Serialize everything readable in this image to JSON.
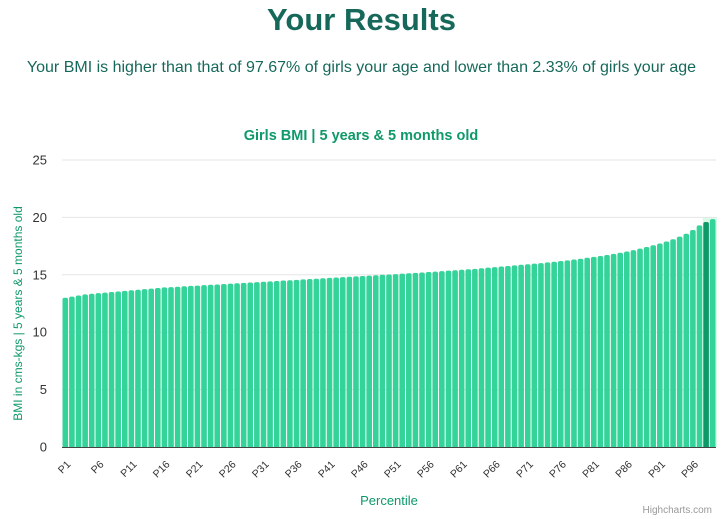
{
  "page": {
    "heading": "Your Results",
    "summary": "Your BMI is higher than that of 97.67% of girls your age and lower than 2.33% of girls your age",
    "credits": "Highcharts.com"
  },
  "colors": {
    "bar": "#34d399",
    "highlight": "#0e9968",
    "highlight_band": "#d9fbe8",
    "title_text": "#0e9968",
    "heading_text": "#16695a",
    "axis_label_text": "#333333",
    "grid": "#e6e6e6"
  },
  "chart_data": {
    "type": "bar",
    "title": "Girls BMI | 5 years & 5 months old",
    "xlabel": "Percentile",
    "ylabel": "BMI in cms-kgs | 5 years & 5 months old",
    "ylim": [
      0,
      25
    ],
    "yticks": [
      0,
      5,
      10,
      15,
      20,
      25
    ],
    "grid": true,
    "x_tick_every": 5,
    "highlight_index": 97,
    "highlight_band_from_index": 97,
    "categories": [
      "P1",
      "P2",
      "P3",
      "P4",
      "P5",
      "P6",
      "P7",
      "P8",
      "P9",
      "P10",
      "P11",
      "P12",
      "P13",
      "P14",
      "P15",
      "P16",
      "P17",
      "P18",
      "P19",
      "P20",
      "P21",
      "P22",
      "P23",
      "P24",
      "P25",
      "P26",
      "P27",
      "P28",
      "P29",
      "P30",
      "P31",
      "P32",
      "P33",
      "P34",
      "P35",
      "P36",
      "P37",
      "P38",
      "P39",
      "P40",
      "P41",
      "P42",
      "P43",
      "P44",
      "P45",
      "P46",
      "P47",
      "P48",
      "P49",
      "P50",
      "P51",
      "P52",
      "P53",
      "P54",
      "P55",
      "P56",
      "P57",
      "P58",
      "P59",
      "P60",
      "P61",
      "P62",
      "P63",
      "P64",
      "P65",
      "P66",
      "P67",
      "P68",
      "P69",
      "P70",
      "P71",
      "P72",
      "P73",
      "P74",
      "P75",
      "P76",
      "P77",
      "P78",
      "P79",
      "P80",
      "P81",
      "P82",
      "P83",
      "P84",
      "P85",
      "P86",
      "P87",
      "P88",
      "P89",
      "P90",
      "P91",
      "P92",
      "P93",
      "P94",
      "P95",
      "P96",
      "P97",
      "P98",
      "P99"
    ],
    "values": [
      13.0,
      13.1,
      13.2,
      13.3,
      13.35,
      13.4,
      13.45,
      13.5,
      13.55,
      13.6,
      13.65,
      13.7,
      13.75,
      13.8,
      13.85,
      13.9,
      13.93,
      13.96,
      14.0,
      14.03,
      14.06,
      14.1,
      14.13,
      14.16,
      14.2,
      14.23,
      14.26,
      14.3,
      14.33,
      14.36,
      14.4,
      14.43,
      14.46,
      14.5,
      14.53,
      14.56,
      14.6,
      14.63,
      14.66,
      14.7,
      14.73,
      14.76,
      14.8,
      14.83,
      14.86,
      14.9,
      14.93,
      14.96,
      15.0,
      15.03,
      15.06,
      15.1,
      15.13,
      15.17,
      15.2,
      15.24,
      15.28,
      15.32,
      15.36,
      15.4,
      15.44,
      15.48,
      15.52,
      15.57,
      15.62,
      15.67,
      15.72,
      15.77,
      15.82,
      15.87,
      15.92,
      15.97,
      16.02,
      16.08,
      16.14,
      16.2,
      16.26,
      16.33,
      16.4,
      16.48,
      16.56,
      16.64,
      16.73,
      16.82,
      16.92,
      17.03,
      17.15,
      17.28,
      17.42,
      17.57,
      17.73,
      17.9,
      18.1,
      18.32,
      18.58,
      18.9,
      19.3,
      19.6,
      19.85
    ]
  }
}
